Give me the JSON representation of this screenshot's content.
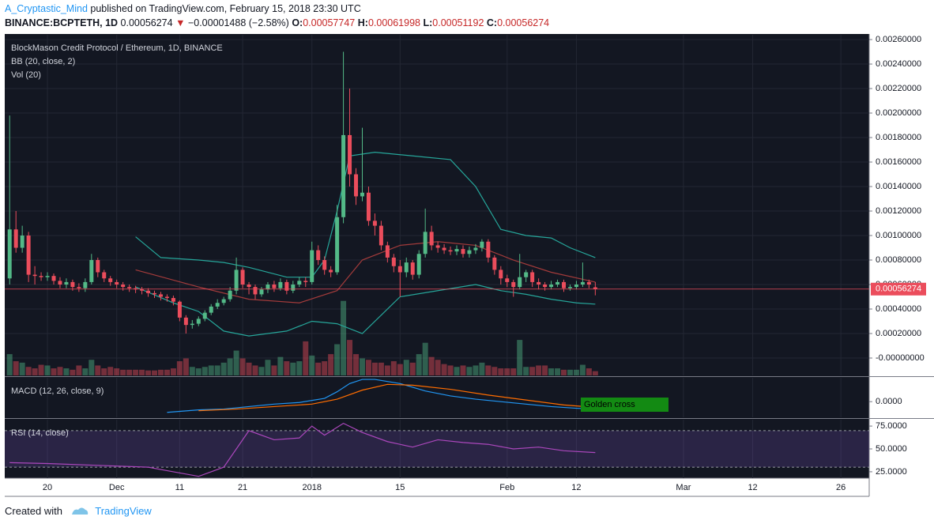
{
  "header": {
    "author": "A_Cryptastic_Mind",
    "published": "published on TradingView.com, February 15, 2018 23:30 UTC",
    "symbol": "BINANCE:BCPTETH, 1D",
    "last": "0.00056274",
    "arrow": "▼",
    "change": "−0.00001488 (−2.58%)",
    "o_label": "O:",
    "o": "0.00057747",
    "h_label": "H:",
    "h": "0.00061998",
    "l_label": "L:",
    "l": "0.00051192",
    "c_label": "C:",
    "c": "0.00056274"
  },
  "footer": {
    "created": "Created with",
    "brand": "TradingView"
  },
  "chart_data": [
    {
      "type": "candlestick",
      "title": "BlockMason Credit Protocol / Ethereum, 1D, BINANCE",
      "indicators": [
        "BB (20, close, 2)",
        "Vol (20)"
      ],
      "up_color": "#53b987",
      "down_color": "#eb4d5c",
      "xlim": [
        13.22,
        150.5
      ],
      "xticks": [
        {
          "value": 20,
          "label": "20"
        },
        {
          "value": 31,
          "label": "Dec"
        },
        {
          "value": 41,
          "label": "11"
        },
        {
          "value": 51,
          "label": "21"
        },
        {
          "value": 62,
          "label": "2018"
        },
        {
          "value": 76,
          "label": "15"
        },
        {
          "value": 93,
          "label": "Feb"
        },
        {
          "value": 104,
          "label": "12"
        },
        {
          "value": 121,
          "label": "Mar"
        },
        {
          "value": 132,
          "label": "12"
        },
        {
          "value": 146,
          "label": "26"
        }
      ],
      "ylim": [
        -0.000142,
        0.002639
      ],
      "yticks": [
        {
          "value": 0,
          "label": "-0.00000000"
        },
        {
          "value": 0.0002,
          "label": "0.00020000"
        },
        {
          "value": 0.0004,
          "label": "0.00040000"
        },
        {
          "value": 0.0006,
          "label": "0.00060000"
        },
        {
          "value": 0.0008,
          "label": "0.00080000"
        },
        {
          "value": 0.001,
          "label": "0.00100000"
        },
        {
          "value": 0.0012,
          "label": "0.00120000"
        },
        {
          "value": 0.0014,
          "label": "0.00140000"
        },
        {
          "value": 0.0016,
          "label": "0.00160000"
        },
        {
          "value": 0.0018,
          "label": "0.00180000"
        },
        {
          "value": 0.002,
          "label": "0.00200000"
        },
        {
          "value": 0.0022,
          "label": "0.00220000"
        },
        {
          "value": 0.0024,
          "label": "0.00240000"
        },
        {
          "value": 0.0026,
          "label": "0.00260000"
        }
      ],
      "grid": true,
      "x": [
        14,
        15,
        16,
        17,
        18,
        19,
        20,
        21,
        22,
        23,
        24,
        25,
        26,
        27,
        28,
        29,
        30,
        31,
        32,
        33,
        34,
        35,
        36,
        37,
        38,
        39,
        40,
        41,
        42,
        43,
        44,
        45,
        46,
        47,
        48,
        49,
        50,
        51,
        52,
        53,
        54,
        55,
        56,
        57,
        58,
        59,
        60,
        61,
        62,
        63,
        64,
        65,
        66,
        67,
        68,
        69,
        70,
        71,
        72,
        73,
        74,
        75,
        76,
        77,
        78,
        79,
        80,
        81,
        82,
        83,
        84,
        85,
        86,
        87,
        88,
        89,
        90,
        91,
        92,
        93,
        94,
        95,
        96,
        97,
        98,
        99,
        100,
        101,
        102,
        103,
        104,
        105,
        106,
        107
      ],
      "open": [
        0.00065,
        0.00105,
        0.0009,
        0.001,
        0.00068,
        0.00067,
        0.00066,
        0.00067,
        0.00063,
        0.0006,
        0.00062,
        0.00058,
        0.00057,
        0.00062,
        0.0008,
        0.0007,
        0.00065,
        0.00062,
        0.0006,
        0.00058,
        0.00057,
        0.00056,
        0.00055,
        0.00053,
        0.00052,
        0.0005,
        0.00049,
        0.00046,
        0.00033,
        0.00027,
        0.00028,
        0.00032,
        0.00037,
        0.00042,
        0.00045,
        0.00048,
        0.00055,
        0.00072,
        0.0006,
        0.00058,
        0.00052,
        0.00056,
        0.0006,
        0.00057,
        0.00062,
        0.00055,
        0.0006,
        0.00063,
        0.00062,
        0.00088,
        0.0008,
        0.00072,
        0.0007,
        0.00115,
        0.00182,
        0.0015,
        0.00132,
        0.00135,
        0.00112,
        0.00108,
        0.00092,
        0.00082,
        0.00075,
        0.0007,
        0.00078,
        0.00068,
        0.00085,
        0.00103,
        0.00092,
        0.0009,
        0.00088,
        0.00087,
        0.00089,
        0.00085,
        0.00088,
        0.0009,
        0.00095,
        0.00082,
        0.00072,
        0.00065,
        0.00062,
        0.00058,
        0.00066,
        0.0007,
        0.00062,
        0.0006,
        0.00058,
        0.0006,
        0.00062,
        0.00057,
        0.00058,
        0.0006,
        0.00062,
        0.00057747
      ],
      "high": [
        0.00198,
        0.0012,
        0.00108,
        0.00103,
        0.00075,
        0.0007,
        0.0007,
        0.00069,
        0.00066,
        0.00065,
        0.00064,
        0.00061,
        0.00065,
        0.00085,
        0.00082,
        0.00072,
        0.00067,
        0.00064,
        0.00062,
        0.0006,
        0.00059,
        0.00058,
        0.00057,
        0.00055,
        0.00054,
        0.00052,
        0.00051,
        0.00047,
        0.00035,
        0.00031,
        0.00034,
        0.00039,
        0.00044,
        0.00048,
        0.0005,
        0.00058,
        0.00082,
        0.00074,
        0.00062,
        0.0006,
        0.00058,
        0.00062,
        0.00063,
        0.00065,
        0.00064,
        0.00063,
        0.00066,
        0.00066,
        0.00095,
        0.00092,
        0.00083,
        0.00075,
        0.00125,
        0.0025,
        0.0022,
        0.00155,
        0.00188,
        0.0014,
        0.00118,
        0.00112,
        0.00095,
        0.00085,
        0.0008,
        0.00082,
        0.0008,
        0.00088,
        0.00122,
        0.00108,
        0.00095,
        0.00093,
        0.00091,
        0.00092,
        0.00092,
        0.00091,
        0.00093,
        0.00097,
        0.00097,
        0.00084,
        0.00075,
        0.00068,
        0.00064,
        0.00085,
        0.00072,
        0.00072,
        0.00065,
        0.00062,
        0.00063,
        0.00064,
        0.00064,
        0.0006,
        0.00063,
        0.00078,
        0.00064,
        0.00061998
      ],
      "low": [
        0.0006,
        0.00086,
        0.00086,
        0.00062,
        0.0006,
        0.00063,
        0.00063,
        0.0006,
        0.00057,
        0.00057,
        0.00055,
        0.00054,
        0.00054,
        0.0006,
        0.00066,
        0.00062,
        0.00059,
        0.00057,
        0.00055,
        0.00054,
        0.00053,
        0.00052,
        0.0005,
        0.00049,
        0.00047,
        0.00046,
        0.00043,
        0.0003,
        0.0002,
        0.00024,
        0.00026,
        0.0003,
        0.00035,
        0.0004,
        0.00043,
        0.00046,
        0.00052,
        0.00057,
        0.00052,
        0.00048,
        0.0005,
        0.00053,
        0.00054,
        0.00055,
        0.00052,
        0.00053,
        0.00058,
        0.00058,
        0.0006,
        0.00076,
        0.00068,
        0.00066,
        0.00068,
        0.0011,
        0.0014,
        0.00125,
        0.00128,
        0.00108,
        0.001,
        0.00088,
        0.00078,
        0.0007,
        0.0005,
        0.00066,
        0.00064,
        0.00065,
        0.00082,
        0.00088,
        0.00086,
        0.00085,
        0.00084,
        0.00084,
        0.00082,
        0.00082,
        0.00085,
        0.00087,
        0.00078,
        0.00068,
        0.0006,
        0.00058,
        0.0005,
        0.00056,
        0.00062,
        0.00058,
        0.00056,
        0.00055,
        0.00056,
        0.00058,
        0.00054,
        0.00055,
        0.00056,
        0.00058,
        0.00057,
        0.00051192
      ],
      "close": [
        0.00105,
        0.0009,
        0.001,
        0.00068,
        0.00067,
        0.00066,
        0.00067,
        0.00063,
        0.0006,
        0.00062,
        0.00058,
        0.00057,
        0.00062,
        0.0008,
        0.0007,
        0.00065,
        0.00062,
        0.0006,
        0.00058,
        0.00057,
        0.00056,
        0.00055,
        0.00053,
        0.00052,
        0.0005,
        0.00049,
        0.00046,
        0.00033,
        0.00027,
        0.00028,
        0.00032,
        0.00037,
        0.00042,
        0.00045,
        0.00048,
        0.00055,
        0.00072,
        0.0006,
        0.00058,
        0.00052,
        0.00056,
        0.0006,
        0.00057,
        0.00062,
        0.00055,
        0.0006,
        0.00063,
        0.00062,
        0.00088,
        0.0008,
        0.00072,
        0.0007,
        0.00115,
        0.00182,
        0.0015,
        0.00132,
        0.00135,
        0.00112,
        0.00108,
        0.00092,
        0.00082,
        0.00075,
        0.0007,
        0.00078,
        0.00068,
        0.00085,
        0.00103,
        0.00092,
        0.0009,
        0.00088,
        0.00087,
        0.00089,
        0.00085,
        0.00088,
        0.0009,
        0.00095,
        0.00082,
        0.00072,
        0.00065,
        0.00062,
        0.00058,
        0.00066,
        0.0007,
        0.00062,
        0.0006,
        0.00058,
        0.0006,
        0.00062,
        0.00057,
        0.00058,
        0.0006,
        0.00062,
        0.0006,
        0.00056274
      ],
      "volume": [
        30,
        20,
        18,
        12,
        10,
        15,
        14,
        10,
        12,
        10,
        8,
        14,
        10,
        22,
        14,
        10,
        12,
        10,
        8,
        8,
        8,
        8,
        7,
        7,
        8,
        8,
        10,
        20,
        24,
        12,
        10,
        12,
        14,
        14,
        18,
        24,
        35,
        24,
        18,
        14,
        12,
        22,
        14,
        26,
        20,
        18,
        20,
        48,
        28,
        18,
        20,
        30,
        44,
        105,
        50,
        30,
        24,
        22,
        18,
        18,
        14,
        20,
        16,
        22,
        18,
        30,
        46,
        26,
        22,
        16,
        14,
        12,
        14,
        12,
        14,
        18,
        14,
        12,
        10,
        10,
        10,
        50,
        12,
        12,
        14,
        14,
        10,
        10,
        8,
        8,
        8,
        15,
        10,
        6
      ],
      "vlim": [
        0,
        480
      ],
      "overlays": [
        {
          "color": "#26a69a",
          "x": [
            34,
            38,
            44,
            48,
            52,
            58,
            62,
            64,
            66,
            68,
            72,
            78,
            84,
            88,
            92,
            96,
            100,
            103,
            107
          ],
          "values": [
            0.00099,
            0.00082,
            0.0008,
            0.00078,
            0.00074,
            0.00066,
            0.00066,
            0.0008,
            0.0012,
            0.00165,
            0.00168,
            0.00165,
            0.00162,
            0.0014,
            0.00105,
            0.001,
            0.00098,
            0.0009,
            0.00082
          ]
        },
        {
          "color": "#a33b3b",
          "x": [
            34,
            44,
            52,
            60,
            66,
            70,
            76,
            82,
            88,
            94,
            100,
            107
          ],
          "values": [
            0.00072,
            0.00058,
            0.00048,
            0.00045,
            0.00055,
            0.0008,
            0.00092,
            0.00095,
            0.00092,
            0.0008,
            0.0007,
            0.00062
          ]
        },
        {
          "color": "#26a69a",
          "x": [
            34,
            40,
            44,
            48,
            52,
            58,
            62,
            66,
            70,
            76,
            82,
            88,
            92,
            96,
            100,
            104,
            107
          ],
          "values": [
            0.00058,
            0.00045,
            0.00038,
            0.00022,
            0.00018,
            0.00022,
            0.0003,
            0.00028,
            0.0002,
            0.0005,
            0.00055,
            0.0006,
            0.00055,
            0.00052,
            0.00048,
            0.00045,
            0.00044
          ]
        }
      ]
    },
    {
      "type": "line",
      "title": "MACD (12, 26, close, 9)",
      "ylim": [
        -0.00019,
        0.00029
      ],
      "yticks": [
        {
          "value": 0,
          "label": "0.0000"
        }
      ],
      "annotation": "Golden cross",
      "series": [
        {
          "color": "#2196f3",
          "x": [
            39,
            44,
            48,
            52,
            56,
            60,
            64,
            66,
            68,
            70,
            72,
            76,
            80,
            84,
            88,
            92,
            96,
            100,
            104,
            107
          ],
          "values": [
            -0.00013,
            -0.0001,
            -9e-05,
            -6e-05,
            -3e-05,
            -1e-05,
            4e-05,
            0.00012,
            0.00022,
            0.00027,
            0.00027,
            0.00022,
            0.00013,
            7e-05,
            3e-05,
            0,
            -3e-05,
            -6e-05,
            -8e-05,
            -9e-05
          ]
        },
        {
          "color": "#ff6d00",
          "x": [
            44,
            50,
            56,
            62,
            66,
            70,
            74,
            78,
            84,
            90,
            96,
            102,
            107
          ],
          "values": [
            -0.00011,
            -9e-05,
            -6e-05,
            -3e-05,
            3e-05,
            0.00014,
            0.00021,
            0.0002,
            0.00015,
            8e-05,
            2e-05,
            -4e-05,
            -7e-05
          ]
        }
      ]
    },
    {
      "type": "line",
      "title": "RSI (14, close)",
      "ylim": [
        18,
        82
      ],
      "yticks": [
        {
          "value": 75,
          "label": "75.0000"
        },
        {
          "value": 50,
          "label": "50.0000"
        },
        {
          "value": 25,
          "label": "25.0000"
        }
      ],
      "band": [
        30,
        70
      ],
      "series": [
        {
          "color": "#ab47bc",
          "x": [
            14,
            20,
            28,
            36,
            40,
            44,
            48,
            52,
            56,
            60,
            62,
            64,
            67,
            70,
            74,
            78,
            82,
            86,
            90,
            94,
            98,
            102,
            107
          ],
          "values": [
            35,
            34,
            32,
            30,
            25,
            20,
            30,
            70,
            60,
            62,
            75,
            65,
            78,
            68,
            58,
            52,
            60,
            57,
            55,
            50,
            52,
            48,
            46
          ]
        }
      ]
    }
  ]
}
